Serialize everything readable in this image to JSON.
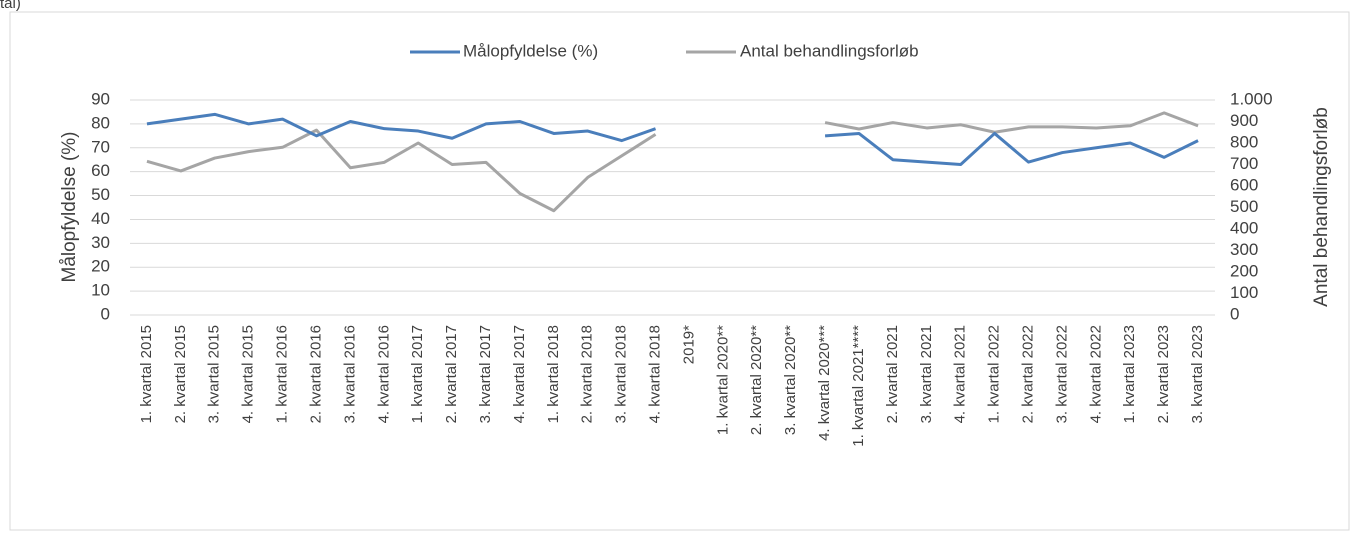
{
  "chart_data": {
    "type": "line",
    "caption": "tal)",
    "y_label": "Målopfyldelse (%)",
    "y2_label": "Antal behandlingsforløb",
    "categories": [
      "1. kvartal 2015",
      "2. kvartal 2015",
      "3. kvartal 2015",
      "4. kvartal 2015",
      "1. kvartal 2016",
      "2. kvartal 2016",
      "3. kvartal 2016",
      "4. kvartal 2016",
      "1. kvartal 2017",
      "2. kvartal 2017",
      "3. kvartal 2017",
      "4. kvartal 2017",
      "1. kvartal 2018",
      "2. kvartal 2018",
      "3. kvartal 2018",
      "4. kvartal 2018",
      "2019*",
      "1. kvartal 2020**",
      "2. kvartal 2020**",
      "3. kvartal 2020**",
      "4. kvartal 2020***",
      "1. kvartal 2021****",
      "2. kvartal 2021",
      "3. kvartal 2021",
      "4. kvartal 2021",
      "1. kvartal 2022",
      "2. kvartal 2022",
      "3. kvartal 2022",
      "4. kvartal 2022",
      "1. kvartal 2023",
      "2. kvartal 2023",
      "3. kvartal 2023"
    ],
    "series": [
      {
        "name": "Målopfyldelse (%)",
        "color": "#4a7ebb",
        "axis": "y",
        "values": [
          80,
          82,
          84,
          80,
          82,
          75,
          81,
          78,
          77,
          74,
          80,
          81,
          76,
          77,
          73,
          78,
          null,
          null,
          null,
          null,
          75,
          76,
          65,
          64,
          63,
          76,
          64,
          68,
          70,
          72,
          66,
          73
        ]
      },
      {
        "name": "Antal behandlingsforløb",
        "color": "#a5a5a5",
        "axis": "y2",
        "values": [
          715,
          670,
          730,
          760,
          780,
          860,
          685,
          710,
          800,
          700,
          710,
          565,
          485,
          640,
          740,
          840,
          null,
          null,
          null,
          null,
          895,
          865,
          895,
          870,
          885,
          850,
          875,
          875,
          870,
          880,
          940,
          880
        ]
      }
    ],
    "ylim": [
      0,
      90
    ],
    "yticks": [
      0,
      10,
      20,
      30,
      40,
      50,
      60,
      70,
      80,
      90
    ],
    "y2lim": [
      0,
      1000
    ],
    "y2ticks": [
      0,
      100,
      200,
      300,
      400,
      500,
      600,
      700,
      800,
      900,
      {
        "value": 1000,
        "label": "1.000"
      }
    ],
    "grid": true,
    "legend": "top"
  }
}
